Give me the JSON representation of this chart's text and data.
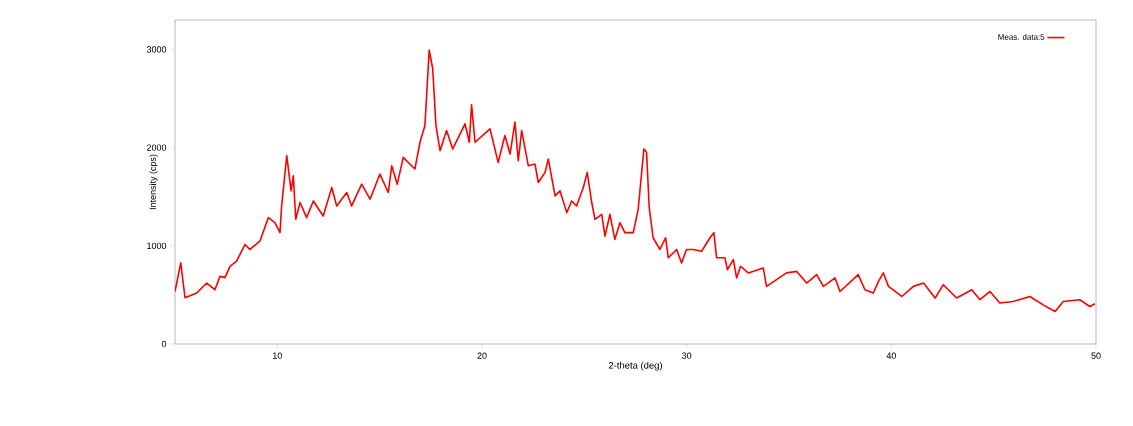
{
  "chart_data": {
    "type": "line",
    "xlabel": "2-theta (deg)",
    "ylabel": "Intensity (cps)",
    "xlim": [
      5,
      50
    ],
    "ylim": [
      0,
      3300
    ],
    "xticks": [
      10,
      20,
      30,
      40,
      50
    ],
    "yticks": [
      0,
      1000,
      2000,
      3000
    ],
    "legend": "top right",
    "marker": "none",
    "line_style": "solid",
    "series": [
      {
        "name": "Meas. data:5",
        "color": "#ff0000",
        "x": [
          5.0,
          5.28,
          5.49,
          6.06,
          6.55,
          6.95,
          7.2,
          7.44,
          7.69,
          8.01,
          8.42,
          8.66,
          9.15,
          9.56,
          9.88,
          10.13,
          10.21,
          10.46,
          10.67,
          10.78,
          10.9,
          11.11,
          11.43,
          11.76,
          12.24,
          12.66,
          12.9,
          13.39,
          13.63,
          14.12,
          14.53,
          15.01,
          15.42,
          15.59,
          15.86,
          16.15,
          16.72,
          16.97,
          17.21,
          17.42,
          17.59,
          17.75,
          17.95,
          18.27,
          18.57,
          19.17,
          19.38,
          19.49,
          19.66,
          20.39,
          20.79,
          21.12,
          21.37,
          21.61,
          21.77,
          21.94,
          22.26,
          22.59,
          22.75,
          23.08,
          23.24,
          23.57,
          23.81,
          24.14,
          24.38,
          24.62,
          24.95,
          25.14,
          25.36,
          25.52,
          25.85,
          26.01,
          26.25,
          26.49,
          26.74,
          26.98,
          27.39,
          27.63,
          27.91,
          28.04,
          28.17,
          28.36,
          28.69,
          28.97,
          29.1,
          29.51,
          29.75,
          29.99,
          30.32,
          30.73,
          31.14,
          31.33,
          31.46,
          31.87,
          31.99,
          32.28,
          32.44,
          32.63,
          33.01,
          33.74,
          33.9,
          34.88,
          35.37,
          35.86,
          36.35,
          36.68,
          37.25,
          37.49,
          38.38,
          38.71,
          39.12,
          39.37,
          39.61,
          39.86,
          40.51,
          41.08,
          41.57,
          42.14,
          42.54,
          43.19,
          43.93,
          44.33,
          44.82,
          45.3,
          45.95,
          46.77,
          47.42,
          48.0,
          48.4,
          49.21,
          49.7,
          49.95
        ],
        "values": [
          535,
          826,
          471,
          519,
          621,
          553,
          689,
          676,
          791,
          843,
          1014,
          963,
          1048,
          1287,
          1236,
          1134,
          1406,
          1918,
          1560,
          1713,
          1270,
          1441,
          1287,
          1457,
          1304,
          1594,
          1406,
          1543,
          1406,
          1628,
          1475,
          1731,
          1543,
          1816,
          1628,
          1901,
          1782,
          2055,
          2225,
          2993,
          2806,
          2225,
          1969,
          2174,
          1987,
          2243,
          2055,
          2437,
          2055,
          2191,
          1850,
          2123,
          1935,
          2260,
          1867,
          2174,
          1816,
          1833,
          1645,
          1748,
          1884,
          1509,
          1560,
          1338,
          1457,
          1406,
          1594,
          1748,
          1441,
          1270,
          1321,
          1099,
          1321,
          1065,
          1236,
          1134,
          1134,
          1372,
          1987,
          1952,
          1390,
          1082,
          963,
          1082,
          878,
          963,
          826,
          963,
          963,
          945,
          1082,
          1134,
          878,
          878,
          758,
          860,
          673,
          792,
          724,
          775,
          587,
          724,
          740,
          621,
          707,
          587,
          673,
          535,
          707,
          553,
          519,
          638,
          724,
          587,
          484,
          587,
          621,
          468,
          604,
          468,
          553,
          451,
          535,
          417,
          433,
          484,
          399,
          331,
          433,
          451,
          382,
          410
        ]
      }
    ]
  }
}
